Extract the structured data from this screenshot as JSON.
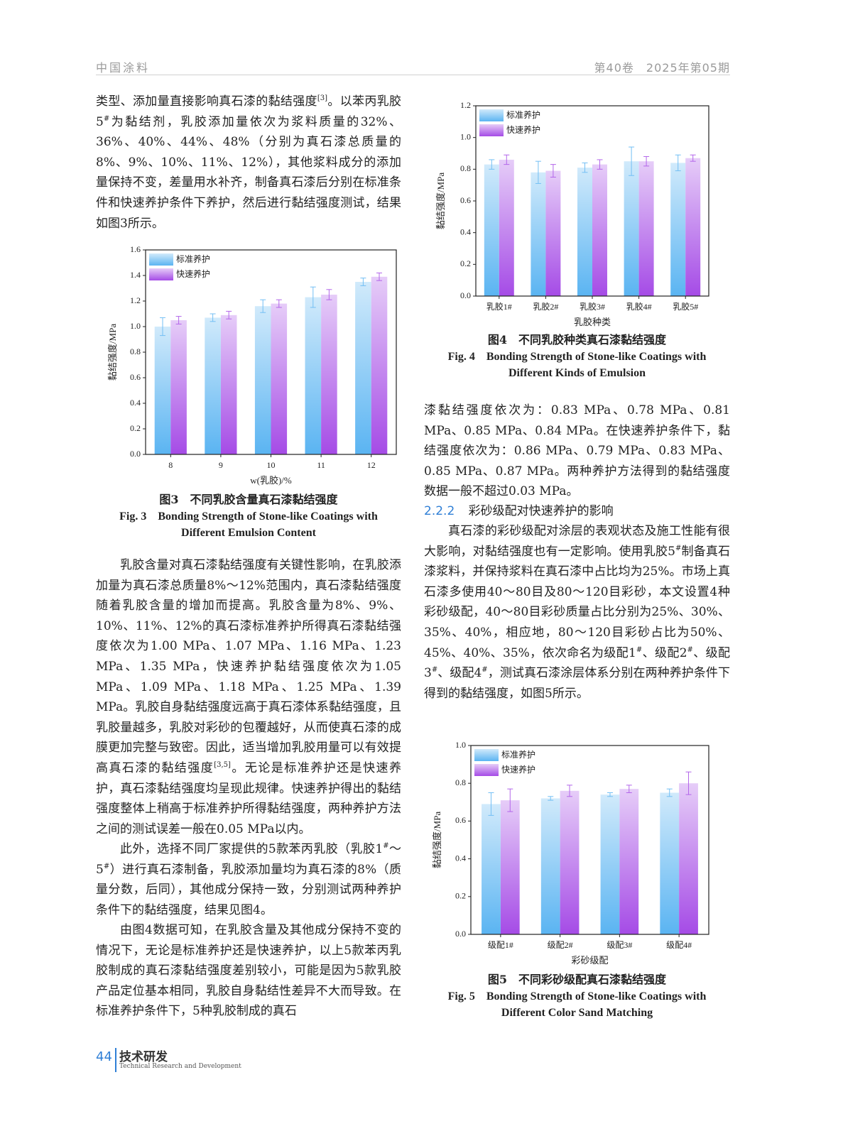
{
  "header": {
    "journal": "中国涂料",
    "issue": "第40卷　2025年第05期"
  },
  "left_column": {
    "paragraphs": [
      [
        {
          "text": "类型、添加量直接影响真石漆的黏结强度"
        },
        {
          "sup": "[3]"
        },
        {
          "text": "。以苯丙乳胶5"
        },
        {
          "sup": "#"
        },
        {
          "text": "为黏结剂，乳胶添加量依次为浆料质量的32%、36%、40%、44%、48%（分别为真石漆总质量的8%、9%、10%、11%、12%），其他浆料成分的添加量保持不变，差量用水补齐，制备真石漆后分别在标准条件和快速养护条件下养护，然后进行黏结强度测试，结果如图3所示。"
        }
      ],
      [
        {
          "text": "乳胶含量对真石漆黏结强度有关键性影响，在乳胶添加量为真石漆总质量8%～12%范围内，真石漆黏结强度随着乳胶含量的增加而提高。乳胶含量为8%、9%、10%、11%、12%的真石漆标准养护所得真石漆黏结强度依次为1.00 MPa、1.07 MPa、1.16 MPa、1.23 MPa、1.35 MPa，快速养护黏结强度依次为1.05 MPa、1.09 MPa、1.18 MPa、1.25 MPa、1.39 MPa。乳胶自身黏结强度远高于真石漆体系黏结强度，且乳胶量越多，乳胶对彩砂的包覆越好，从而使真石漆的成膜更加完整与致密。因此，适当增加乳胶用量可以有效提高真石漆的黏结强度"
        },
        {
          "sup": "[3,5]"
        },
        {
          "text": "。无论是标准养护还是快速养护，真石漆黏结强度均呈现此规律。快速养护得出的黏结强度整体上稍高于标准养护所得黏结强度，两种养护方法之间的测试误差一般在0.05 MPa以内。"
        }
      ],
      [
        {
          "text": "此外，选择不同厂家提供的5款苯丙乳胶（乳胶1"
        },
        {
          "sup": "#"
        },
        {
          "text": "～5"
        },
        {
          "sup": "#"
        },
        {
          "text": "）进行真石漆制备，乳胶添加量均为真石漆的8%（质量分数，后同），其他成分保持一致，分别测试两种养护条件下的黏结强度，结果见图4。"
        }
      ],
      [
        {
          "text": "由图4数据可知，在乳胶含量及其他成分保持不变的情况下，无论是标准养护还是快速养护，以上5款苯丙乳胶制成的真石漆黏结强度差别较小，可能是因为5款乳胶产品定位基本相同，乳胶自身黏结性差异不大而导致。在标准养护条件下，5种乳胶制成的真石"
        }
      ]
    ]
  },
  "right_column": {
    "paragraphs": [
      [
        {
          "text": "漆黏结强度依次为：0.83 MPa、0.78 MPa、0.81 MPa、0.85 MPa、0.84 MPa。在快速养护条件下，黏结强度依次为：0.86 MPa、0.79 MPa、0.83 MPa、0.85 MPa、0.87 MPa。两种养护方法得到的黏结强度数据一般不超过0.03 MPa。"
        }
      ],
      [
        {
          "text": "真石漆的彩砂级配对涂层的表观状态及施工性能有很大影响，对黏结强度也有一定影响。使用乳胶5"
        },
        {
          "sup": "#"
        },
        {
          "text": "制备真石漆浆料，并保持浆料在真石漆中占比均为25%。市场上真石漆多使用40～80目及80～120目彩砂，本文设置4种彩砂级配，40～80目彩砂质量占比分别为25%、30%、35%、40%，相应地，80～120目彩砂占比为50%、45%、40%、35%，依次命名为级配1"
        },
        {
          "sup": "#"
        },
        {
          "text": "、级配2"
        },
        {
          "sup": "#"
        },
        {
          "text": "、级配3"
        },
        {
          "sup": "#"
        },
        {
          "text": "、级配4"
        },
        {
          "sup": "#"
        },
        {
          "text": "，测试真石漆涂层体系分别在两种养护条件下得到的黏结强度，如图5所示。"
        }
      ]
    ],
    "heading": {
      "number": "2.2.2",
      "text": "彩砂级配对快速养护的影响"
    }
  },
  "chart_data": [
    {
      "type": "bar",
      "title": "图3　不同乳胶含量真石漆黏结强度",
      "title_en": [
        "Fig. 3　Bonding Strength of Stone-like Coatings with",
        "Different Emulsion Content"
      ],
      "x_label": "w(乳胶)/%",
      "y_label": "黏结强度/MPa",
      "categories": [
        "8",
        "9",
        "10",
        "11",
        "12"
      ],
      "series": [
        {
          "name": "标准养护",
          "color": "#5ab4f2",
          "values": [
            1.0,
            1.07,
            1.16,
            1.23,
            1.35
          ],
          "errors": [
            0.07,
            0.03,
            0.05,
            0.08,
            0.03
          ]
        },
        {
          "name": "快速养护",
          "color": "#a54be6",
          "values": [
            1.05,
            1.09,
            1.18,
            1.25,
            1.39
          ],
          "errors": [
            0.03,
            0.03,
            0.03,
            0.04,
            0.03
          ]
        }
      ],
      "ylim": [
        0,
        1.6
      ],
      "yticks": [
        {
          "value": 0,
          "label": "0.0"
        },
        0.2,
        0.4,
        0.6,
        0.8,
        {
          "value": 1,
          "label": "1.0"
        },
        1.2,
        1.4,
        1.6
      ],
      "legend": "upper left"
    },
    {
      "type": "bar",
      "title": "图4　不同乳胶种类真石漆黏结强度",
      "title_en": [
        "Fig. 4　Bonding Strength of Stone-like Coatings with",
        "Different Kinds of Emulsion"
      ],
      "x_label": "乳胶种类",
      "y_label": "黏结强度/MPa",
      "categories": [
        "乳胶1#",
        "乳胶2#",
        "乳胶3#",
        "乳胶4#",
        "乳胶5#"
      ],
      "series": [
        {
          "name": "标准养护",
          "color": "#5ab4f2",
          "values": [
            0.83,
            0.78,
            0.81,
            0.85,
            0.84
          ],
          "errors": [
            0.03,
            0.07,
            0.03,
            0.09,
            0.05
          ]
        },
        {
          "name": "快速养护",
          "color": "#a54be6",
          "values": [
            0.86,
            0.79,
            0.83,
            0.85,
            0.87
          ],
          "errors": [
            0.03,
            0.04,
            0.03,
            0.03,
            0.02
          ]
        }
      ],
      "ylim": [
        0,
        1.2
      ],
      "yticks": [
        {
          "value": 0,
          "label": "0.0"
        },
        0.2,
        0.4,
        0.6,
        0.8,
        {
          "value": 1,
          "label": "1.0"
        },
        1.2
      ],
      "legend": "upper left"
    },
    {
      "type": "bar",
      "title": "图5　不同彩砂级配真石漆黏结强度",
      "title_en": [
        "Fig. 5　Bonding Strength of Stone-like Coatings with",
        "Different Color Sand Matching"
      ],
      "x_label": "彩砂级配",
      "y_label": "黏结强度/MPa",
      "categories": [
        "级配1#",
        "级配2#",
        "级配3#",
        "级配4#"
      ],
      "series": [
        {
          "name": "标准养护",
          "color": "#5ab4f2",
          "values": [
            0.69,
            0.72,
            0.74,
            0.75
          ],
          "errors": [
            0.06,
            0.01,
            0.01,
            0.02
          ]
        },
        {
          "name": "快速养护",
          "color": "#a54be6",
          "values": [
            0.71,
            0.76,
            0.77,
            0.8
          ],
          "errors": [
            0.06,
            0.03,
            0.02,
            0.06
          ]
        }
      ],
      "ylim": [
        0,
        1.0
      ],
      "yticks": [
        {
          "value": 0,
          "label": "0.0"
        },
        0.2,
        0.4,
        0.6,
        0.8,
        {
          "value": 1,
          "label": "1.0"
        }
      ],
      "legend": "upper left"
    }
  ],
  "footer": {
    "page": "44",
    "section": "技术研发",
    "section_en": "Technical Research and Development"
  }
}
